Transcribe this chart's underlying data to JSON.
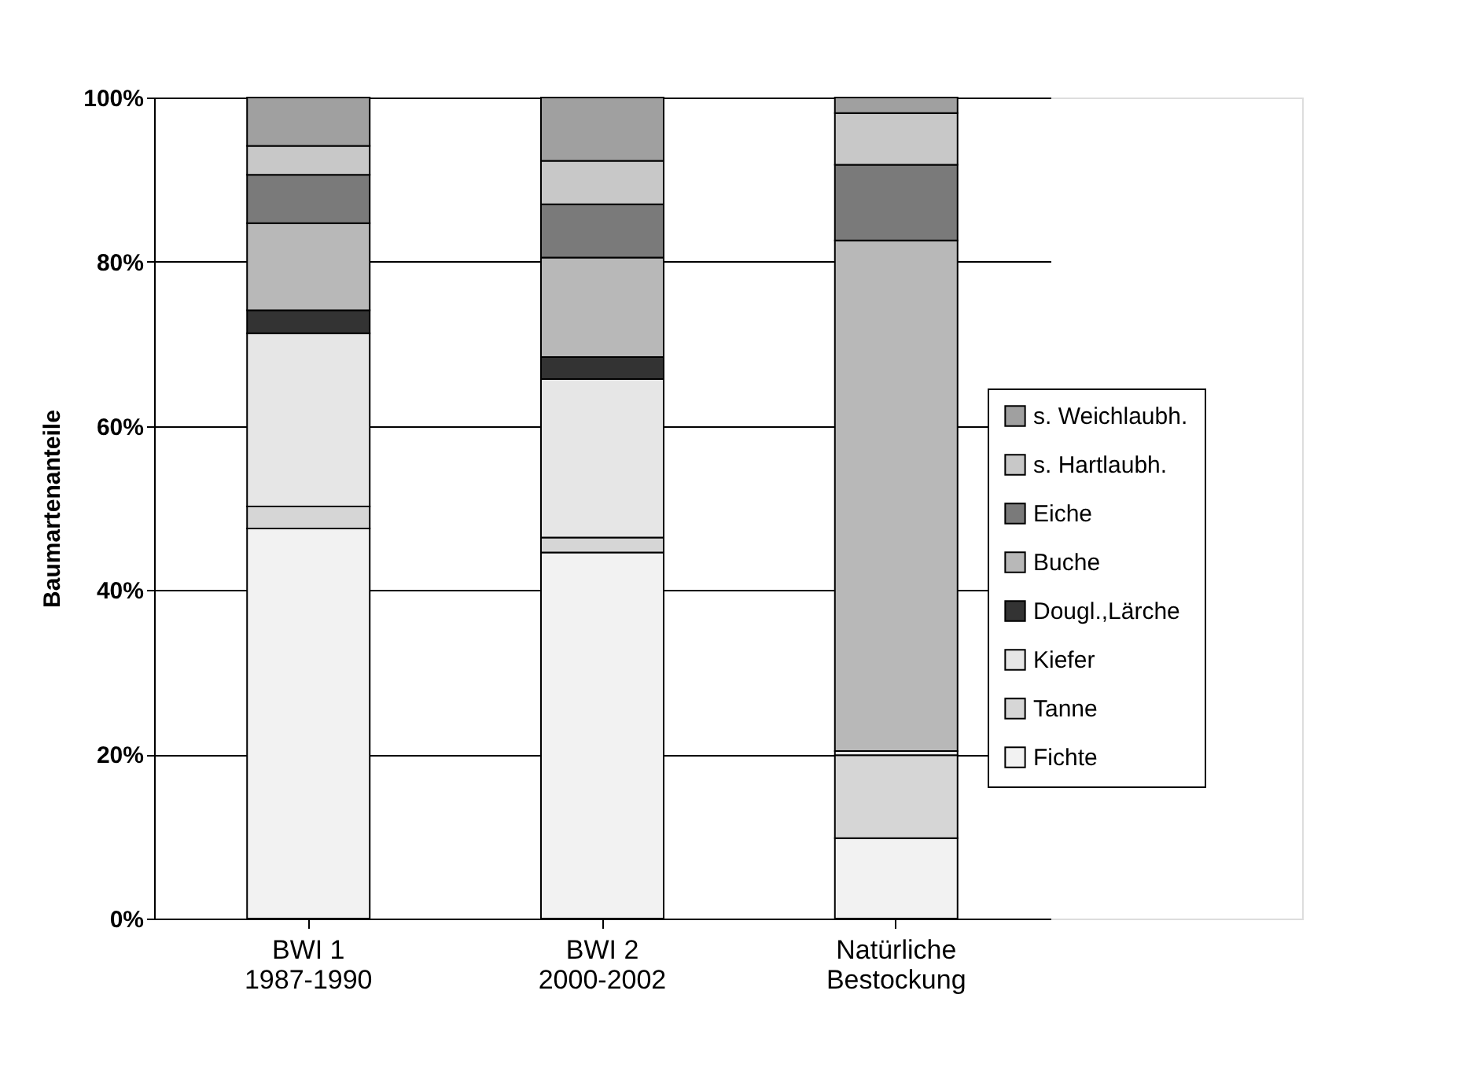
{
  "chart_data": {
    "type": "bar",
    "stacked": true,
    "ylabel": "Baumartenanteile",
    "categories": [
      "BWI 1\n1987-1990",
      "BWI 2\n2000-2002",
      "Natürliche\nBestockung"
    ],
    "series": [
      {
        "name": "Fichte",
        "color": "#f2f2f2",
        "values": [
          47.5,
          44.6,
          9.8
        ]
      },
      {
        "name": "Tanne",
        "color": "#d6d6d6",
        "values": [
          2.7,
          1.8,
          10.1
        ]
      },
      {
        "name": "Kiefer",
        "color": "#e6e6e6",
        "values": [
          21.1,
          19.3,
          0.5
        ]
      },
      {
        "name": "Dougl.,Lärche",
        "color": "#333333",
        "values": [
          2.8,
          2.7,
          0
        ]
      },
      {
        "name": "Buche",
        "color": "#b8b8b8",
        "values": [
          10.6,
          12.1,
          62.2
        ]
      },
      {
        "name": "Eiche",
        "color": "#7a7a7a",
        "values": [
          5.9,
          6.5,
          9.2
        ]
      },
      {
        "name": "s. Hartlaubh.",
        "color": "#c8c8c8",
        "values": [
          3.5,
          5.3,
          6.3
        ]
      },
      {
        "name": "s. Weichlaubh.",
        "color": "#a0a0a0",
        "values": [
          5.9,
          7.7,
          1.9
        ]
      }
    ],
    "ylim": [
      0,
      100
    ],
    "yticks": [
      {
        "value": 0,
        "label": "0%"
      },
      {
        "value": 20,
        "label": "20%"
      },
      {
        "value": 40,
        "label": "40%"
      },
      {
        "value": 60,
        "label": "60%"
      },
      {
        "value": 80,
        "label": "80%"
      },
      {
        "value": 100,
        "label": "100%"
      }
    ],
    "grid": "y",
    "legend": "right"
  }
}
